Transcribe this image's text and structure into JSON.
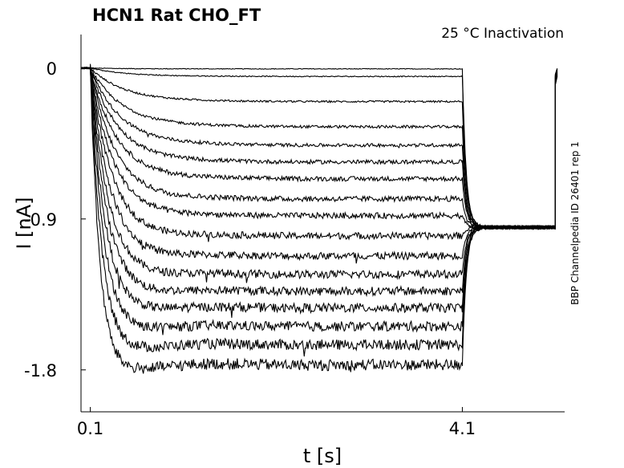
{
  "chart_data": {
    "type": "line",
    "title": "HCN1  Rat  CHO_FT",
    "subtitle": "25 °C  Inactivation",
    "side_label": "BBP Channelpedia ID 26401 rep 1",
    "xlabel": "t [s]",
    "ylabel": "I [nA]",
    "x_ticks": [
      {
        "value": 0.1,
        "label": "0.1"
      },
      {
        "value": 4.1,
        "label": "4.1"
      }
    ],
    "y_ticks": [
      {
        "value": 0,
        "label": "0"
      },
      {
        "value": -0.9,
        "label": "-0.9"
      },
      {
        "value": -1.8,
        "label": "-1.8"
      }
    ],
    "xlim": [
      0.0,
      5.2
    ],
    "ylim": [
      -2.05,
      0.2
    ],
    "grid": false,
    "line_color": "#000000",
    "protocol": {
      "step_start_s": 0.1,
      "step_end_s": 4.1,
      "test_end_s": 5.1,
      "post_step_current_nA": -0.95
    },
    "series_steady_state_nA": [
      -0.005,
      -0.05,
      -0.2,
      -0.35,
      -0.46,
      -0.56,
      -0.66,
      -0.78,
      -0.88,
      -1.0,
      -1.12,
      -1.23,
      -1.33,
      -1.43,
      -1.54,
      -1.65,
      -1.77
    ]
  }
}
